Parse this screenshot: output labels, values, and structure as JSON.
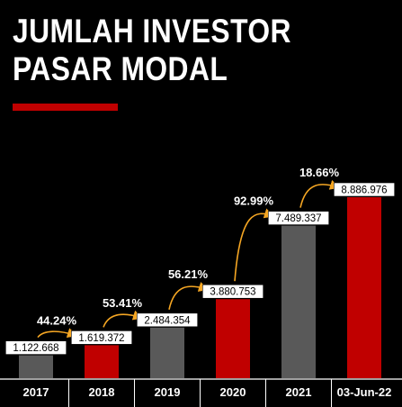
{
  "colors": {
    "background": "#000000",
    "accent_red": "#c00000",
    "bar_gray": "#595959",
    "arrow": "#f5a623",
    "text": "#ffffff"
  },
  "chart_data": {
    "type": "bar",
    "title_line1": "JUMLAH INVESTOR",
    "title_line2": "PASAR MODAL",
    "categories": [
      "2017",
      "2018",
      "2019",
      "2020",
      "2021",
      "03-Jun-22"
    ],
    "values": [
      1122668,
      1619372,
      2484354,
      3880753,
      7489337,
      8886976
    ],
    "value_labels": [
      "1.122.668",
      "1.619.372",
      "2.484.354",
      "3.880.753",
      "7.489.337",
      "8.886.976"
    ],
    "bar_colors": [
      "#595959",
      "#c00000",
      "#595959",
      "#c00000",
      "#595959",
      "#c00000"
    ],
    "growth_labels": [
      "44.24%",
      "53.41%",
      "56.21%",
      "92.99%",
      "18.66%"
    ],
    "ylim": [
      0,
      8886976
    ],
    "grid": false,
    "legend": "none"
  }
}
